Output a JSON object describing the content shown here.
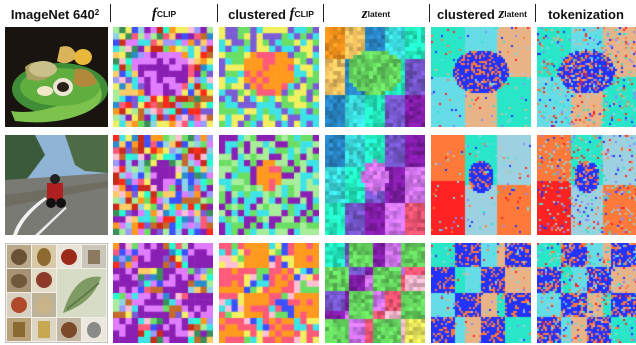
{
  "columns": {
    "source": {
      "label": "ImageNet 640",
      "sup": "2"
    },
    "fclip": {
      "sym": "f",
      "sub": "CLIP"
    },
    "clustered_fclip": {
      "prefix": "clustered ",
      "sym": "f",
      "sub": "CLIP"
    },
    "zlatent": {
      "sym": "z",
      "sub": "latent"
    },
    "clustered_zlatent": {
      "prefix": "clustered ",
      "sym": "z",
      "sub": "latent"
    },
    "tokenization": {
      "label": "tokenization"
    }
  },
  "rows": [
    "food-plate",
    "motorcycle-road",
    "object-grid"
  ],
  "colors": {
    "background": "#ffffff",
    "palette": [
      "#ff9a1f",
      "#ffcc66",
      "#2b8ccf",
      "#3de3e6",
      "#26ffcf",
      "#7b5bd6",
      "#8a1fb3",
      "#e07dff",
      "#ff5a7a",
      "#ffc0d6",
      "#f2f060",
      "#6bdf64",
      "#a8ee9a",
      "#3b50ff",
      "#9a9aff",
      "#cc2a1a",
      "#ff2a1a",
      "#8fd4e6",
      "#c46a2a",
      "#3a8f5a"
    ],
    "token_palette": [
      "#ff7a3a",
      "#29e6c8",
      "#2233ff",
      "#8888ff",
      "#ff2222",
      "#9ed1e0",
      "#e9b388",
      "#66dde6"
    ]
  }
}
